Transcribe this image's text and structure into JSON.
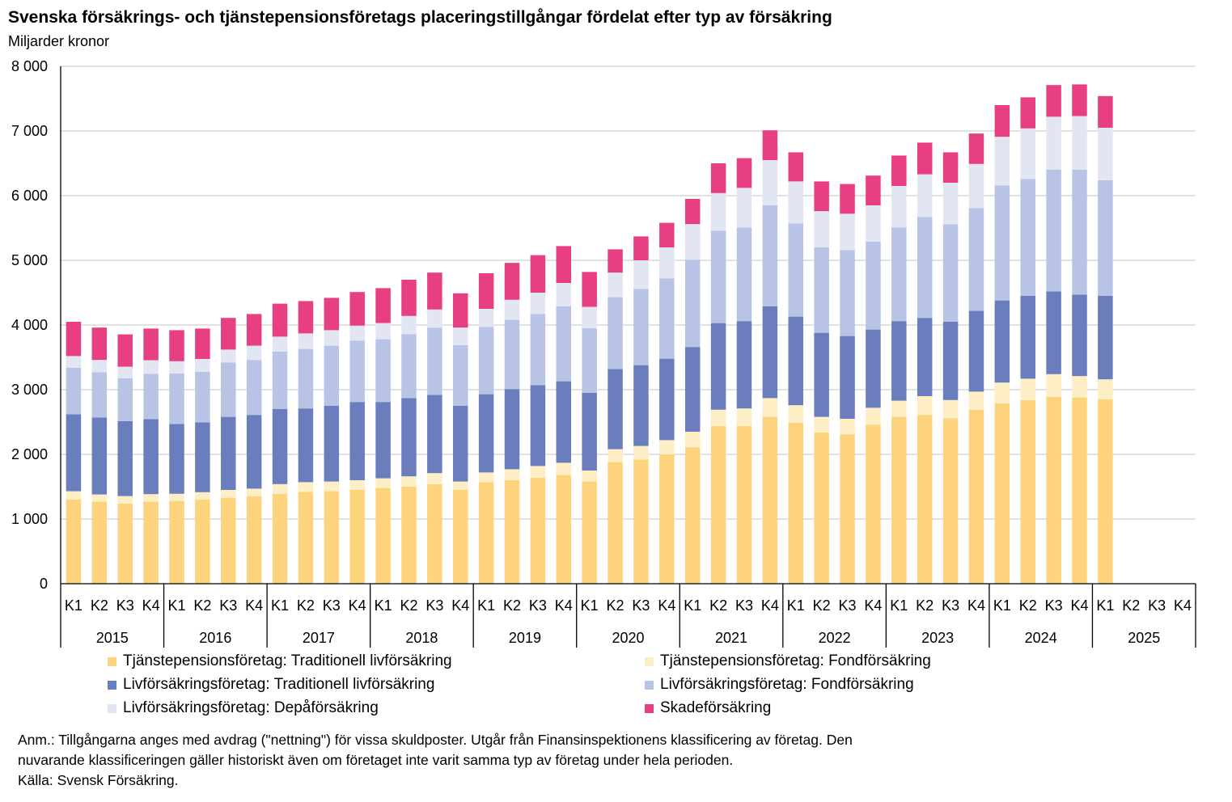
{
  "title": "Svenska försäkrings- och tjänstepensionsföretags placeringstillgångar fördelat efter typ av försäkring",
  "subtitle": "Miljarder kronor",
  "notes": [
    "Anm.: Tillgångarna anges med avdrag (\"nettning\") för vissa skuldposter. Utgår från Finansinspektionens klassificering av företag. Den",
    "nuvarande  klassificeringen gäller historiskt även om företaget inte varit samma typ av företag under hela perioden.",
    "Källa: Svensk Försäkring."
  ],
  "chart_data": {
    "type": "bar",
    "stacked": true,
    "title": "Svenska försäkrings- och tjänstepensionsföretags placeringstillgångar fördelat efter typ av försäkring",
    "ylabel": "Miljarder kronor",
    "ylim": [
      0,
      8000
    ],
    "yticks": [
      0,
      1000,
      2000,
      3000,
      4000,
      5000,
      6000,
      7000,
      8000
    ],
    "ytick_labels": [
      "0",
      "1 000",
      "2 000",
      "3 000",
      "4 000",
      "5 000",
      "6 000",
      "7 000",
      "8 000"
    ],
    "grid": true,
    "legend_position": "bottom",
    "years": [
      "2015",
      "2016",
      "2017",
      "2018",
      "2019",
      "2020",
      "2021",
      "2022",
      "2023",
      "2024",
      "2025"
    ],
    "quarters": [
      "K1",
      "K2",
      "K3",
      "K4"
    ],
    "categories": [
      "2015 K1",
      "2015 K2",
      "2015 K3",
      "2015 K4",
      "2016 K1",
      "2016 K2",
      "2016 K3",
      "2016 K4",
      "2017 K1",
      "2017 K2",
      "2017 K3",
      "2017 K4",
      "2018 K1",
      "2018 K2",
      "2018 K3",
      "2018 K4",
      "2019 K1",
      "2019 K2",
      "2019 K3",
      "2019 K4",
      "2020 K1",
      "2020 K2",
      "2020 K3",
      "2020 K4",
      "2021 K1",
      "2021 K2",
      "2021 K3",
      "2021 K4",
      "2022 K1",
      "2022 K2",
      "2022 K3",
      "2022 K4",
      "2023 K1",
      "2023 K2",
      "2023 K3",
      "2023 K4",
      "2024 K1",
      "2024 K2",
      "2024 K3",
      "2024 K4",
      "2025 K1",
      "2025 K2",
      "2025 K3",
      "2025 K4"
    ],
    "series": [
      {
        "name": "Tjänstepensionsföretag: Traditionell livförsäkring",
        "color": "#FDD37D",
        "values": [
          1300,
          1270,
          1240,
          1270,
          1280,
          1300,
          1330,
          1350,
          1390,
          1420,
          1430,
          1450,
          1480,
          1500,
          1540,
          1450,
          1570,
          1600,
          1640,
          1680,
          1580,
          1880,
          1920,
          2000,
          2110,
          2440,
          2440,
          2580,
          2490,
          2340,
          2310,
          2460,
          2580,
          2610,
          2560,
          2690,
          2790,
          2840,
          2890,
          2880,
          2850,
          null,
          null,
          null
        ]
      },
      {
        "name": "Tjänstepensionsföretag: Fondförsäkring",
        "color": "#FDEEC5",
        "values": [
          130,
          110,
          115,
          115,
          110,
          115,
          120,
          120,
          150,
          150,
          150,
          150,
          150,
          160,
          170,
          130,
          150,
          170,
          180,
          190,
          170,
          200,
          210,
          220,
          240,
          250,
          270,
          290,
          270,
          240,
          240,
          260,
          250,
          290,
          280,
          280,
          320,
          330,
          350,
          330,
          310,
          null,
          null,
          null
        ]
      },
      {
        "name": "Livförsäkringsföretag: Traditionell livförsäkring",
        "color": "#6A7DBD",
        "values": [
          1190,
          1190,
          1160,
          1160,
          1080,
          1080,
          1130,
          1140,
          1160,
          1140,
          1170,
          1210,
          1180,
          1210,
          1210,
          1170,
          1210,
          1240,
          1250,
          1260,
          1200,
          1240,
          1250,
          1260,
          1310,
          1340,
          1350,
          1420,
          1370,
          1300,
          1280,
          1210,
          1230,
          1210,
          1210,
          1250,
          1270,
          1280,
          1280,
          1260,
          1290,
          null,
          null,
          null
        ]
      },
      {
        "name": "Livförsäkringsföretag: Fondförsäkring",
        "color": "#B9C3E5",
        "values": [
          720,
          700,
          660,
          700,
          780,
          780,
          840,
          850,
          890,
          920,
          930,
          950,
          970,
          990,
          1040,
          940,
          1040,
          1070,
          1100,
          1160,
          1000,
          1110,
          1180,
          1240,
          1350,
          1430,
          1450,
          1560,
          1440,
          1320,
          1330,
          1360,
          1450,
          1560,
          1510,
          1590,
          1780,
          1810,
          1880,
          1930,
          1790,
          null,
          null,
          null
        ]
      },
      {
        "name": "Livförsäkringsföretag: Depåförsäkring",
        "color": "#E2E6F2",
        "values": [
          180,
          190,
          180,
          210,
          190,
          200,
          200,
          220,
          230,
          240,
          240,
          230,
          250,
          280,
          280,
          270,
          280,
          310,
          330,
          360,
          330,
          380,
          440,
          480,
          550,
          580,
          610,
          700,
          650,
          560,
          560,
          560,
          640,
          660,
          640,
          680,
          750,
          780,
          820,
          830,
          810,
          null,
          null,
          null
        ]
      },
      {
        "name": "Skadeförsäkring",
        "color": "#E83F82",
        "values": [
          530,
          500,
          500,
          490,
          480,
          470,
          490,
          490,
          510,
          500,
          500,
          520,
          540,
          560,
          570,
          530,
          550,
          570,
          580,
          570,
          540,
          360,
          370,
          380,
          390,
          460,
          460,
          460,
          450,
          460,
          460,
          460,
          470,
          490,
          470,
          470,
          490,
          480,
          490,
          490,
          490,
          null,
          null,
          null
        ]
      }
    ]
  }
}
